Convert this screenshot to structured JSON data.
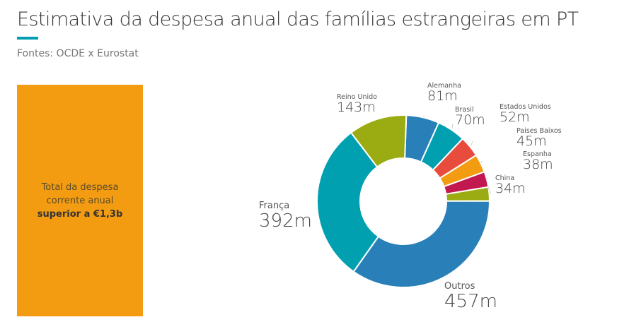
{
  "title": "Estimativa da despesa anual das famílias estrangeiras em PT",
  "subtitle": "Fontes: OCDE x Eurostat",
  "box": {
    "line1": "Total da despesa",
    "line2": "corrente anual",
    "bold": "superior a €1,3b",
    "color": "#f39c12"
  },
  "accent_color": "#009eb0",
  "chart_data": {
    "type": "pie",
    "donut": true,
    "unit": "m",
    "slices": [
      {
        "name": "Alemanha",
        "value": 81,
        "label": "81m",
        "color": "#2980b9"
      },
      {
        "name": "Brasil",
        "value": 70,
        "label": "70m",
        "color": "#00a0b0"
      },
      {
        "name": "Estados Unidos",
        "value": 52,
        "label": "52m",
        "color": "#e74c3c"
      },
      {
        "name": "Paises Baixos",
        "value": 45,
        "label": "45m",
        "color": "#f39c12"
      },
      {
        "name": "Espanha",
        "value": 38,
        "label": "38m",
        "color": "#c0184f"
      },
      {
        "name": "China",
        "value": 34,
        "label": "34m",
        "color": "#9aac12"
      },
      {
        "name": "Outros",
        "value": 457,
        "label": "457m",
        "color": "#2980b9"
      },
      {
        "name": "França",
        "value": 392,
        "label": "392m",
        "color": "#00a0b0"
      },
      {
        "name": "Reino Unido",
        "value": 143,
        "label": "143m",
        "color": "#9aac12"
      }
    ]
  }
}
